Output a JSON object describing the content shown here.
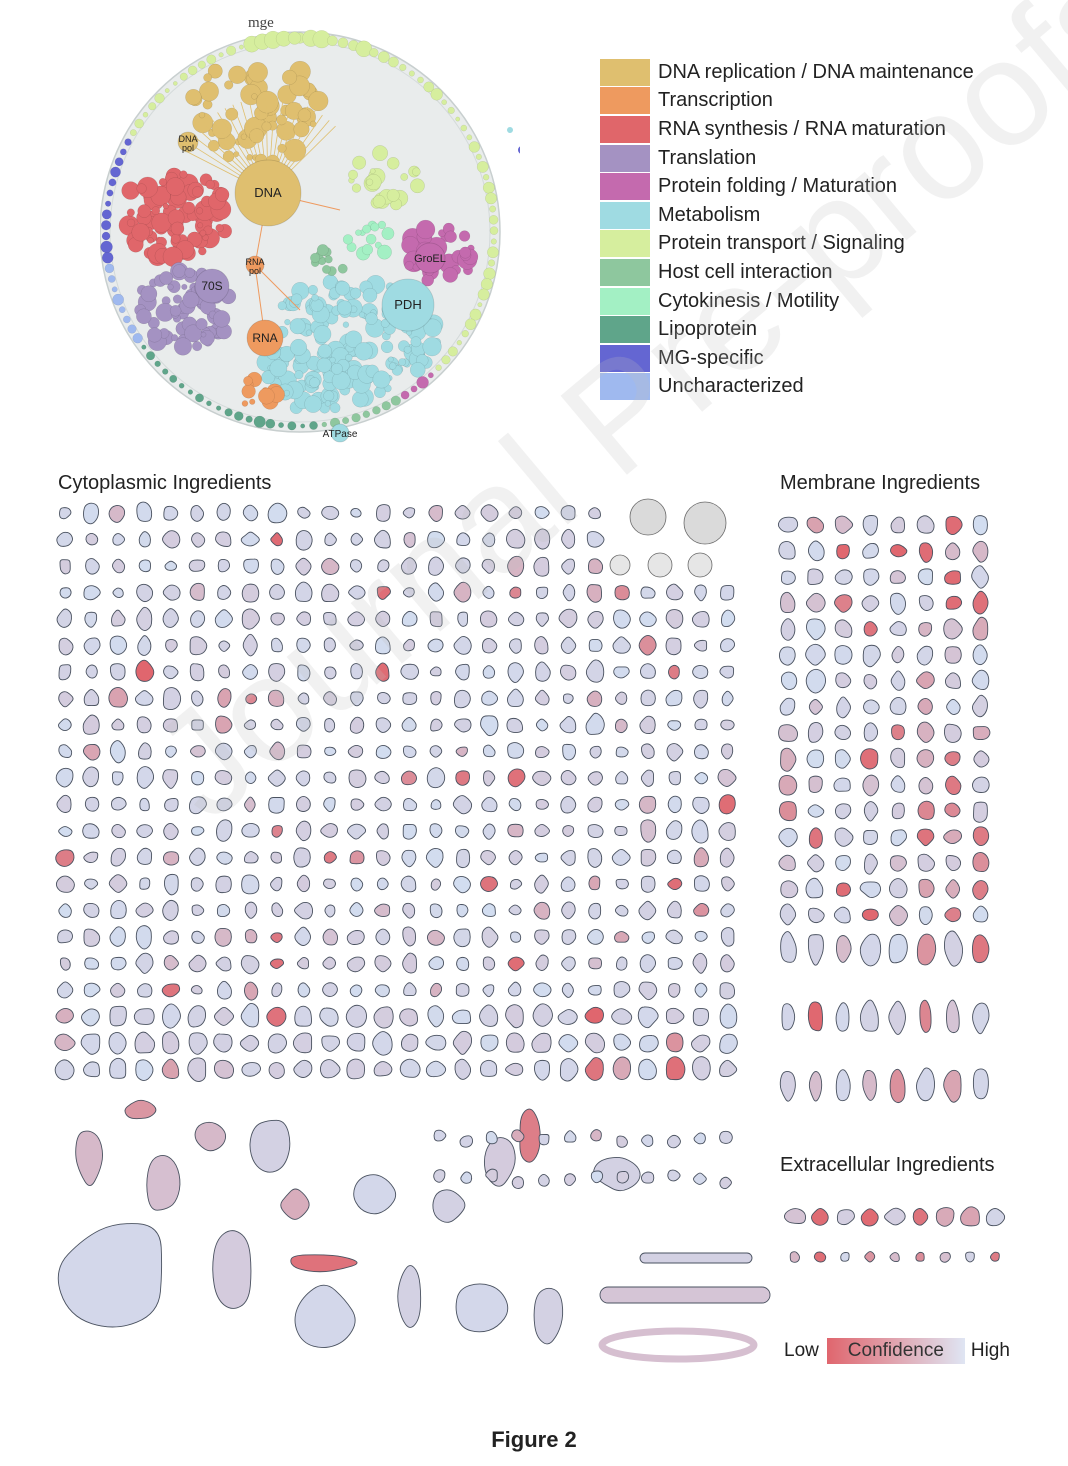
{
  "bubble_diagram": {
    "outer_label": "mge",
    "node_labels": {
      "dna": "DNA",
      "dna_pol": "DNA\npol",
      "rna_pol": "RNA\npol",
      "ribosome": "70S",
      "rna": "RNA",
      "groel": "GroEL",
      "pdh": "PDH",
      "atpase": "ATPase"
    }
  },
  "legend": [
    {
      "label": "DNA replication / DNA maintenance",
      "color": "#dfbf6f"
    },
    {
      "label": "Transcription",
      "color": "#ee9a5f"
    },
    {
      "label": "RNA synthesis / RNA maturation",
      "color": "#e0666a"
    },
    {
      "label": "Translation",
      "color": "#a492c2"
    },
    {
      "label": "Protein folding / Maturation",
      "color": "#c46aae"
    },
    {
      "label": "Metabolism",
      "color": "#9fdbe2"
    },
    {
      "label": "Protein transport / Signaling",
      "color": "#d6ee9e"
    },
    {
      "label": "Host cell interaction",
      "color": "#8ec79e"
    },
    {
      "label": "Cytokinesis / Motility",
      "color": "#a3f0c4"
    },
    {
      "label": "Lipoprotein",
      "color": "#5fa58a"
    },
    {
      "label": "MG-specific",
      "color": "#6466d2"
    },
    {
      "label": "Uncharacterized",
      "color": "#9fb9ef"
    }
  ],
  "sections": {
    "cytoplasmic": "Cytoplasmic Ingredients",
    "membrane": "Membrane Ingredients",
    "extracellular": "Extracellular Ingredients"
  },
  "confidence_legend": {
    "low": "Low",
    "label": "Confidence",
    "high": "High",
    "low_color": "#e0666e",
    "high_color": "#dfe5f3"
  },
  "caption": "Figure 2",
  "watermark": "Journal Pre-proofs"
}
